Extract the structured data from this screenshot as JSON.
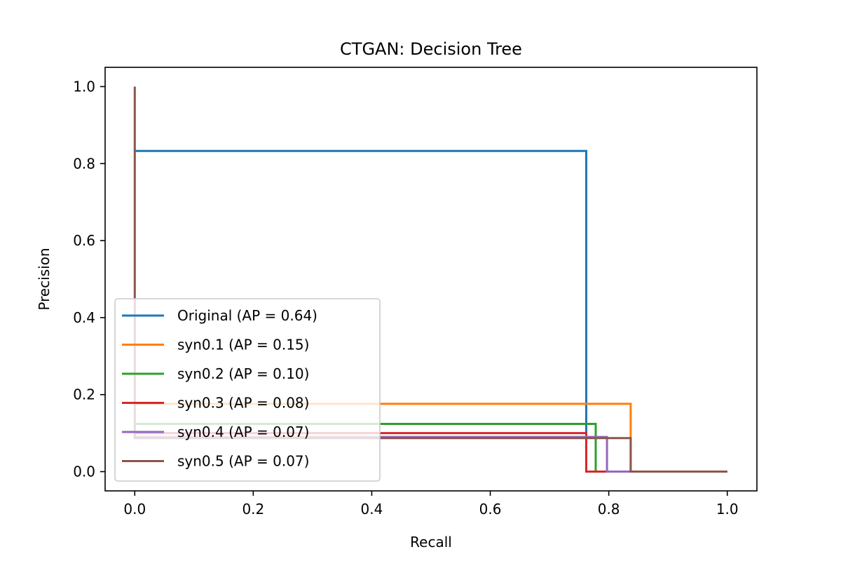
{
  "chart_data": {
    "type": "line",
    "title": "CTGAN: Decision Tree",
    "xlabel": "Recall",
    "ylabel": "Precision",
    "xlim": [
      -0.05,
      1.05
    ],
    "ylim": [
      -0.05,
      1.05
    ],
    "xticks": [
      0.0,
      0.2,
      0.4,
      0.6,
      0.8,
      1.0
    ],
    "yticks": [
      0.0,
      0.2,
      0.4,
      0.6,
      0.8,
      1.0
    ],
    "xtick_labels": [
      "0.0",
      "0.2",
      "0.4",
      "0.6",
      "0.8",
      "1.0"
    ],
    "ytick_labels": [
      "0.0",
      "0.2",
      "0.4",
      "0.6",
      "0.8",
      "1.0"
    ],
    "grid": false,
    "legend_position": "lower-left",
    "series": [
      {
        "name": "Original (AP = 0.64)",
        "color": "#1f77b4",
        "x": [
          1.0,
          0.762,
          0.762,
          0.0
        ],
        "y": [
          0.0,
          0.0,
          0.833,
          0.833
        ]
      },
      {
        "name": "syn0.1 (AP = 0.15)",
        "color": "#ff7f0e",
        "x": [
          1.0,
          0.837,
          0.837,
          0.0
        ],
        "y": [
          0.0,
          0.0,
          0.176,
          0.176
        ]
      },
      {
        "name": "syn0.2 (AP = 0.10)",
        "color": "#2ca02c",
        "x": [
          1.0,
          0.778,
          0.778,
          0.0
        ],
        "y": [
          0.0,
          0.0,
          0.124,
          0.124
        ]
      },
      {
        "name": "syn0.3 (AP = 0.08)",
        "color": "#d62728",
        "x": [
          1.0,
          0.762,
          0.762,
          0.0
        ],
        "y": [
          0.0,
          0.0,
          0.1,
          0.1
        ]
      },
      {
        "name": "syn0.4 (AP = 0.07)",
        "color": "#9467bd",
        "x": [
          1.0,
          0.797,
          0.797,
          0.0
        ],
        "y": [
          0.0,
          0.0,
          0.09,
          0.09
        ]
      },
      {
        "name": "syn0.5 (AP = 0.07)",
        "color": "#8c564b",
        "x": [
          1.0,
          0.837,
          0.837,
          0.0,
          0.0
        ],
        "y": [
          0.0,
          0.0,
          0.087,
          0.087,
          1.0
        ]
      }
    ]
  }
}
